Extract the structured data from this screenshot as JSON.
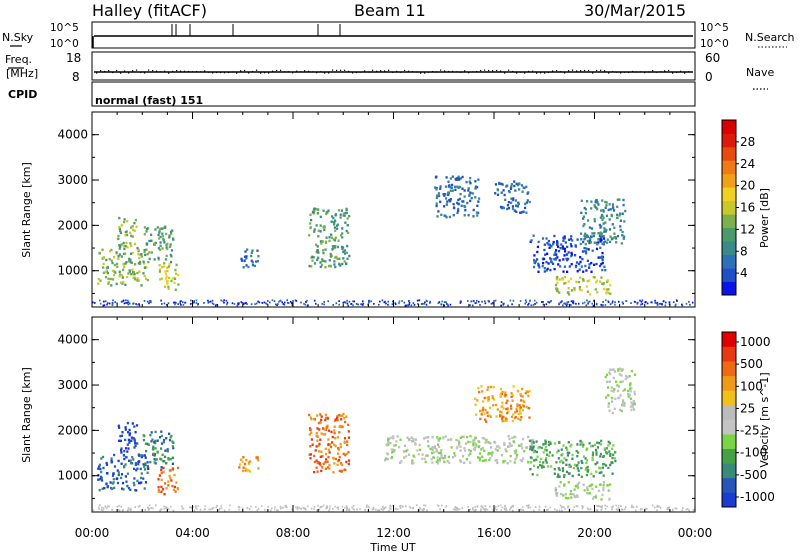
{
  "header": {
    "radar": "Halley (fitACF)",
    "beam": "Beam 11",
    "date": "30/Mar/2015"
  },
  "status_panel": {
    "nsky_label": "N.Sky",
    "nsky_ticks": [
      "10^5",
      "10^0"
    ],
    "nsearch_label": "N.Search",
    "nsearch_ticks": [
      "10^5",
      "10^0"
    ],
    "freq_label_1": "Freq.",
    "freq_label_2": "[MHz]",
    "freq_ticks": [
      "18",
      "8"
    ],
    "nave_label": "Nave",
    "nave_ticks": [
      "60",
      "0"
    ],
    "cpid_label": "CPID",
    "cpid_value": "normal (fast) 151"
  },
  "chart_data": [
    {
      "type": "heatmap",
      "name": "power",
      "ylabel": "Slant Range [km]",
      "y_ticks": [
        1000,
        2000,
        3000,
        4000
      ],
      "ylim": [
        200,
        4500
      ],
      "x_ticks": [
        "00:00",
        "04:00",
        "08:00",
        "12:00",
        "16:00",
        "20:00",
        "00:00"
      ],
      "xlim_hours": [
        0,
        24
      ],
      "colorbar": {
        "label": "Power [dB]",
        "ticks": [
          "4",
          "8",
          "12",
          "16",
          "20",
          "24",
          "28"
        ],
        "colors": [
          "#0a14e6",
          "#1e50c8",
          "#2c70b8",
          "#3a8a8a",
          "#4a9a6a",
          "#7cb04a",
          "#c8c828",
          "#f0d020",
          "#f2a018",
          "#f07a14",
          "#e84a10",
          "#e01a0a",
          "#d80000"
        ]
      },
      "echo_regions": [
        {
          "t": [
            0.2,
            2.2
          ],
          "r": [
            700,
            1500
          ],
          "level": 5
        },
        {
          "t": [
            1.0,
            1.8
          ],
          "r": [
            1500,
            2200
          ],
          "level": 5
        },
        {
          "t": [
            2.0,
            3.2
          ],
          "r": [
            1200,
            2000
          ],
          "level": 4
        },
        {
          "t": [
            2.6,
            3.4
          ],
          "r": [
            600,
            1200
          ],
          "level": 6
        },
        {
          "t": [
            5.8,
            6.6
          ],
          "r": [
            1100,
            1500
          ],
          "level": 2
        },
        {
          "t": [
            8.6,
            10.2
          ],
          "r": [
            1100,
            2400
          ],
          "level": 4
        },
        {
          "t": [
            13.6,
            15.4
          ],
          "r": [
            2200,
            3100
          ],
          "level": 2
        },
        {
          "t": [
            16.0,
            17.4
          ],
          "r": [
            2300,
            3000
          ],
          "level": 2
        },
        {
          "t": [
            17.4,
            20.4
          ],
          "r": [
            1000,
            1800
          ],
          "level": 1
        },
        {
          "t": [
            18.4,
            20.6
          ],
          "r": [
            500,
            900
          ],
          "level": 6
        },
        {
          "t": [
            19.4,
            21.2
          ],
          "r": [
            1600,
            2600
          ],
          "level": 3
        }
      ]
    },
    {
      "type": "heatmap",
      "name": "velocity",
      "ylabel": "Slant Range [km]",
      "y_ticks": [
        1000,
        2000,
        3000,
        4000
      ],
      "ylim": [
        200,
        4500
      ],
      "x_ticks": [
        "00:00",
        "04:00",
        "08:00",
        "12:00",
        "16:00",
        "20:00",
        "00:00"
      ],
      "xlim_hours": [
        0,
        24
      ],
      "xlabel": "Time UT",
      "colorbar": {
        "label": "Velocity [m s^-1]",
        "ticks": [
          "1000",
          "500",
          "100",
          "25",
          "-25",
          "-100",
          "-500",
          "-1000"
        ],
        "colors": [
          "#1a3cd2",
          "#2656b8",
          "#3a8a7a",
          "#46a048",
          "#7ad448",
          "#c4c4c4",
          "#bcbcbc",
          "#f2c01a",
          "#f09a1a",
          "#ee6a14",
          "#e83a10",
          "#e00000"
        ]
      },
      "echo_regions": [
        {
          "t": [
            0.2,
            2.2
          ],
          "r": [
            700,
            1500
          ],
          "level": 1
        },
        {
          "t": [
            1.0,
            1.8
          ],
          "r": [
            1500,
            2200
          ],
          "level": 0
        },
        {
          "t": [
            2.0,
            3.2
          ],
          "r": [
            1200,
            2000
          ],
          "level": 2
        },
        {
          "t": [
            2.6,
            3.4
          ],
          "r": [
            600,
            1200
          ],
          "level": 9
        },
        {
          "t": [
            5.8,
            6.6
          ],
          "r": [
            1100,
            1500
          ],
          "level": 8
        },
        {
          "t": [
            8.6,
            10.2
          ],
          "r": [
            1100,
            2400
          ],
          "level": 9
        },
        {
          "t": [
            11.6,
            17.6
          ],
          "r": [
            1300,
            1900
          ],
          "level": 5
        },
        {
          "t": [
            15.2,
            17.4
          ],
          "r": [
            2200,
            3000
          ],
          "level": 8
        },
        {
          "t": [
            17.4,
            20.8
          ],
          "r": [
            1000,
            1800
          ],
          "level": 3
        },
        {
          "t": [
            18.4,
            20.6
          ],
          "r": [
            500,
            900
          ],
          "level": 5
        },
        {
          "t": [
            20.4,
            21.6
          ],
          "r": [
            2400,
            3400
          ],
          "level": 5
        }
      ]
    }
  ]
}
